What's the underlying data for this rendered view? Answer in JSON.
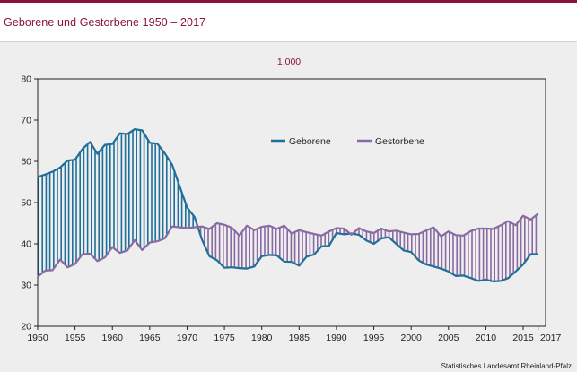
{
  "page": {
    "title": "Geborene und Gestorbene 1950 – 2017",
    "source": "Statistisches Landesamt Rheinland-Pfalz"
  },
  "chart_data": {
    "type": "line",
    "title": "Geborene und Gestorbene 1950 – 2017",
    "unit_label": "1.000",
    "xlabel": "",
    "ylabel": "",
    "xlim": [
      1950,
      2017
    ],
    "ylim": [
      20,
      80
    ],
    "x_ticks": [
      "1950",
      "1955",
      "1960",
      "1965",
      "1970",
      "1975",
      "1980",
      "1985",
      "1990",
      "1995",
      "2000",
      "2005",
      "2010",
      "2015",
      "2017"
    ],
    "y_ticks": [
      "20",
      "30",
      "40",
      "50",
      "60",
      "70",
      "80"
    ],
    "legend_position": "top-right inside plot",
    "fill_style": "vertical hatch between series, coloured by the higher series",
    "colors": {
      "Geborene": "#1f6f9a",
      "Gestorbene": "#8a6aa3"
    },
    "x": [
      1950,
      1951,
      1952,
      1953,
      1954,
      1955,
      1956,
      1957,
      1958,
      1959,
      1960,
      1961,
      1962,
      1963,
      1964,
      1965,
      1966,
      1967,
      1968,
      1969,
      1970,
      1971,
      1972,
      1973,
      1974,
      1975,
      1976,
      1977,
      1978,
      1979,
      1980,
      1981,
      1982,
      1983,
      1984,
      1985,
      1986,
      1987,
      1988,
      1989,
      1990,
      1991,
      1992,
      1993,
      1994,
      1995,
      1996,
      1997,
      1998,
      1999,
      2000,
      2001,
      2002,
      2003,
      2004,
      2005,
      2006,
      2007,
      2008,
      2009,
      2010,
      2011,
      2012,
      2013,
      2014,
      2015,
      2016,
      2017
    ],
    "series": [
      {
        "name": "Geborene",
        "values": [
          56.2,
          56.8,
          57.5,
          58.5,
          60.2,
          60.4,
          63.0,
          64.7,
          61.8,
          64.0,
          64.2,
          66.8,
          66.6,
          67.8,
          67.5,
          64.5,
          64.3,
          62.0,
          59.2,
          54.0,
          48.8,
          46.5,
          41.0,
          37.0,
          36.0,
          34.2,
          34.3,
          34.1,
          34.0,
          34.5,
          37.0,
          37.3,
          37.2,
          35.7,
          35.6,
          34.7,
          36.9,
          37.4,
          39.4,
          39.5,
          42.6,
          42.3,
          42.5,
          42.2,
          40.8,
          40.0,
          41.3,
          41.6,
          40.0,
          38.4,
          38.0,
          36.0,
          35.0,
          34.5,
          34.0,
          33.3,
          32.2,
          32.3,
          31.7,
          31.0,
          31.3,
          30.9,
          31.0,
          31.7,
          33.3,
          35.0,
          37.5,
          37.5
        ]
      },
      {
        "name": "Gestorbene",
        "values": [
          32.0,
          33.5,
          33.6,
          36.2,
          34.3,
          35.1,
          37.5,
          37.6,
          35.8,
          36.7,
          39.2,
          37.8,
          38.4,
          40.9,
          38.5,
          40.3,
          40.6,
          41.3,
          44.2,
          44.0,
          43.8,
          44.0,
          44.2,
          43.6,
          45.0,
          44.6,
          43.9,
          42.0,
          44.4,
          43.3,
          44.1,
          44.4,
          43.6,
          44.4,
          42.5,
          43.3,
          42.8,
          42.4,
          42.0,
          43.0,
          43.8,
          43.7,
          42.2,
          43.8,
          43.0,
          42.6,
          43.7,
          43.0,
          43.2,
          42.7,
          42.3,
          42.4,
          43.2,
          44.0,
          41.8,
          43.0,
          42.1,
          42.0,
          43.1,
          43.7,
          43.7,
          43.6,
          44.5,
          45.5,
          44.5,
          46.8,
          45.9,
          47.3
        ]
      }
    ]
  }
}
